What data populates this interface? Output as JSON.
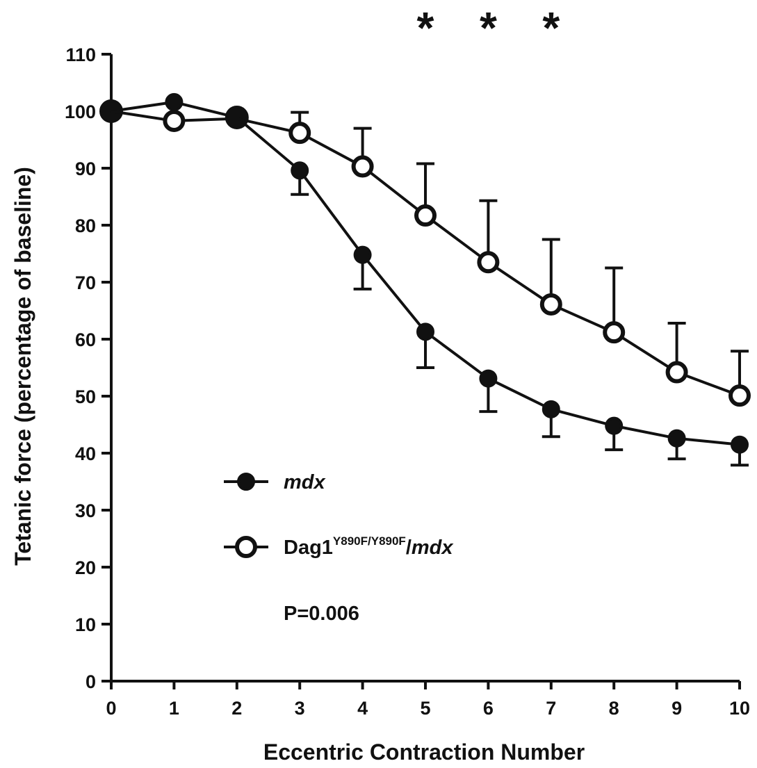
{
  "chart_data": {
    "type": "line",
    "title": "",
    "xlabel": "Eccentric Contraction Number",
    "ylabel": "Tetanic force (percentage of baseline)",
    "xlim": [
      0,
      10
    ],
    "ylim": [
      0,
      110
    ],
    "x_ticks": [
      "0",
      "1",
      "2",
      "3",
      "4",
      "5",
      "6",
      "7",
      "8",
      "9",
      "10"
    ],
    "y_ticks": [
      "0",
      "10",
      "20",
      "30",
      "40",
      "50",
      "60",
      "70",
      "80",
      "90",
      "100",
      "110"
    ],
    "grid": false,
    "legend_position": "bottom-left",
    "series": [
      {
        "name": "mdx",
        "marker": "filled-circle",
        "color": "#111111",
        "x": [
          0,
          1,
          2,
          3,
          4,
          5,
          6,
          7,
          8,
          9,
          10
        ],
        "y": [
          100,
          101.6,
          98.9,
          89.6,
          74.8,
          61.3,
          53.1,
          47.7,
          44.8,
          42.6,
          41.5
        ],
        "error": [
          0,
          0,
          0,
          4.2,
          6,
          6.3,
          5.8,
          4.8,
          4.2,
          3.6,
          3.6
        ]
      },
      {
        "name_parts": [
          "Dag1",
          "Y890F/Y890F",
          "/",
          "mdx"
        ],
        "marker": "open-circle",
        "color": "#111111",
        "x": [
          0,
          1,
          2,
          3,
          4,
          5,
          6,
          7,
          8,
          9,
          10
        ],
        "y": [
          100,
          98.3,
          98.7,
          96.2,
          90.3,
          81.7,
          73.5,
          66.1,
          61.2,
          54.2,
          50.1
        ],
        "error": [
          0,
          0,
          0,
          3.6,
          6.7,
          9.1,
          10.8,
          11.4,
          11.3,
          8.6,
          7.8
        ]
      }
    ],
    "significance": {
      "symbol": "*",
      "x": [
        5,
        6,
        7
      ]
    },
    "annotation": "P=0.006"
  }
}
